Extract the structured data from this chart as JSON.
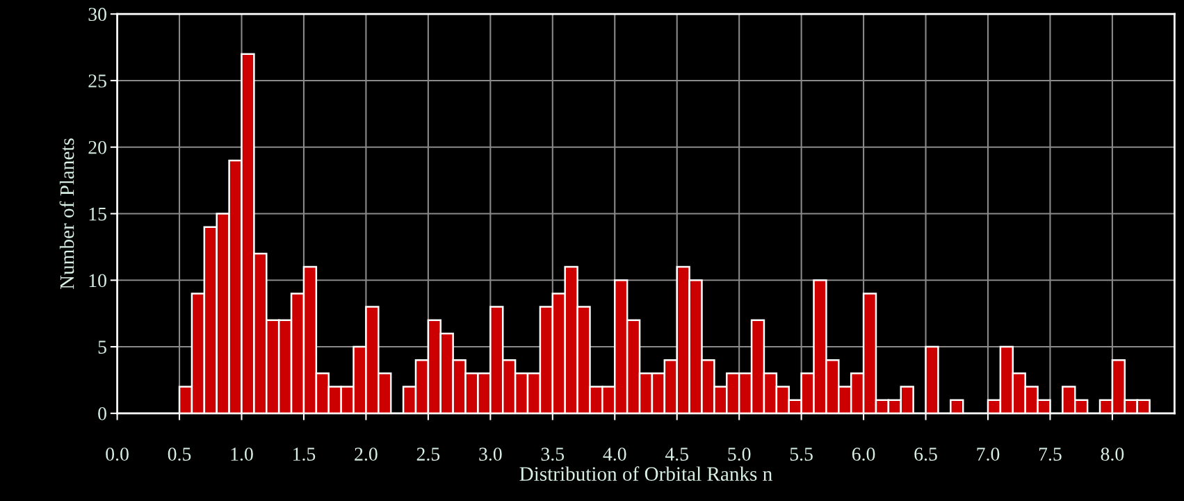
{
  "chart_data": {
    "type": "histogram",
    "xlabel": "Distribution of Orbital Ranks n",
    "ylabel": "Number of Planets",
    "bins": [
      0.5,
      0.6,
      0.7,
      0.8,
      0.9,
      1.0,
      1.1,
      1.2,
      1.3,
      1.4,
      1.5,
      1.6,
      1.7,
      1.8,
      1.9,
      2.0,
      2.1,
      2.2,
      2.3,
      2.4,
      2.5,
      2.6,
      2.7,
      2.8,
      2.9,
      3.0,
      3.1,
      3.2,
      3.3,
      3.4,
      3.5,
      3.6,
      3.7,
      3.8,
      3.9,
      4.0,
      4.1,
      4.2,
      4.3,
      4.4,
      4.5,
      4.6,
      4.7,
      4.8,
      4.9,
      5.0,
      5.1,
      5.2,
      5.3,
      5.4,
      5.5,
      5.6,
      5.7,
      5.8,
      5.9,
      6.0,
      6.1,
      6.2,
      6.3,
      6.4,
      6.5,
      6.6,
      6.7,
      6.8,
      6.9,
      7.0,
      7.1,
      7.2,
      7.3,
      7.4,
      7.5,
      7.6,
      7.7,
      7.8,
      7.9,
      8.0,
      8.1,
      8.2,
      8.3
    ],
    "values": [
      2,
      9,
      14,
      15,
      19,
      27,
      12,
      7,
      7,
      9,
      11,
      3,
      2,
      2,
      5,
      8,
      3,
      0,
      2,
      4,
      7,
      6,
      4,
      3,
      3,
      8,
      4,
      3,
      3,
      8,
      9,
      11,
      8,
      2,
      2,
      10,
      7,
      3,
      3,
      4,
      11,
      10,
      4,
      2,
      3,
      3,
      7,
      3,
      2,
      1,
      3,
      10,
      4,
      2,
      3,
      9,
      1,
      1,
      2,
      0,
      5,
      0,
      1,
      0,
      0,
      1,
      5,
      3,
      2,
      1,
      0,
      2,
      1,
      0,
      1,
      4,
      1,
      1
    ],
    "color": "#cc0000",
    "xlim": [
      0,
      8.5
    ],
    "xticks": [
      {
        "value": 0,
        "label": "0.0"
      },
      0.5,
      {
        "value": 1,
        "label": "1.0"
      },
      1.5,
      {
        "value": 2,
        "label": "2.0"
      },
      2.5,
      {
        "value": 3,
        "label": "3.0"
      },
      3.5,
      {
        "value": 4,
        "label": "4.0"
      },
      4.5,
      {
        "value": 5,
        "label": "5.0"
      },
      5.5,
      {
        "value": 6,
        "label": "6.0"
      },
      6.5,
      {
        "value": 7,
        "label": "7.0"
      },
      7.5,
      {
        "value": 8,
        "label": "8.0"
      }
    ],
    "ylim": [
      0,
      30
    ],
    "yticks": [
      0,
      5,
      10,
      15,
      20,
      25,
      30
    ],
    "grid": true
  }
}
